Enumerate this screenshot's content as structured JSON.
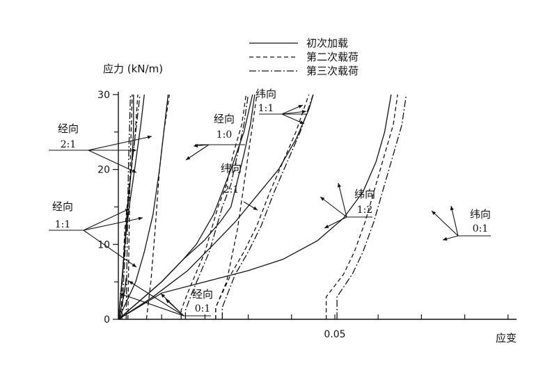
{
  "chart_data": {
    "type": "line",
    "ylabel": "应力 (kN/m)",
    "xlabel": "应变",
    "yticks": [
      0,
      10,
      20,
      30
    ],
    "xtick_labels": [
      {
        "value": 0.05,
        "label": "0.05"
      }
    ],
    "xlim": [
      -0.0035,
      0.074
    ],
    "ylim": [
      0,
      30
    ],
    "grid": false,
    "legend_position": "top-center",
    "legend": [
      {
        "label": "初次加载",
        "style": "solid"
      },
      {
        "label": "第二次载荷",
        "style": "dashed"
      },
      {
        "label": "第三次载荷",
        "style": "dashdot"
      }
    ],
    "groups": [
      {
        "label_line1": "经向",
        "label_line2": "2:1",
        "curves": [
          {
            "style": "solid",
            "points": [
              [
                0,
                0
              ],
              [
                0.0005,
                3
              ],
              [
                0.0012,
                8
              ],
              [
                0.002,
                14
              ],
              [
                0.003,
                20
              ],
              [
                0.0035,
                25
              ],
              [
                0.0035,
                30
              ]
            ]
          },
          {
            "style": "dashed",
            "points": [
              [
                0.0022,
                0
              ],
              [
                0.0024,
                8
              ],
              [
                0.0026,
                16
              ],
              [
                0.0028,
                22
              ],
              [
                0.003,
                26
              ],
              [
                0.0032,
                30
              ]
            ]
          },
          {
            "style": "dashdot",
            "points": [
              [
                0.0018,
                0
              ],
              [
                0.002,
                8
              ],
              [
                0.0022,
                16
              ],
              [
                0.0024,
                22
              ],
              [
                0.0026,
                26
              ],
              [
                0.0028,
                30
              ]
            ]
          }
        ]
      },
      {
        "label_line1": "经向",
        "label_line2": "1:1",
        "curves": [
          {
            "style": "solid",
            "points": [
              [
                0,
                0
              ],
              [
                0.0005,
                3
              ],
              [
                0.001,
                6
              ],
              [
                0.0015,
                10
              ],
              [
                0.0025,
                15
              ],
              [
                0.004,
                21
              ],
              [
                0.0052,
                26
              ],
              [
                0.006,
                30
              ]
            ]
          },
          {
            "style": "dashed",
            "points": [
              [
                0.0005,
                0
              ],
              [
                0.001,
                6
              ],
              [
                0.0015,
                12
              ],
              [
                0.0025,
                18
              ],
              [
                0.0038,
                24
              ],
              [
                0.0045,
                30
              ]
            ]
          },
          {
            "style": "dashdot",
            "points": [
              [
                0.0008,
                0
              ],
              [
                0.0012,
                5
              ],
              [
                0.0018,
                12
              ],
              [
                0.0028,
                19
              ],
              [
                0.004,
                25
              ],
              [
                0.005,
                30
              ]
            ]
          }
        ]
      },
      {
        "label_line1": "经向",
        "label_line2": "1:0",
        "curves": [
          {
            "style": "solid",
            "points": [
              [
                0,
                0
              ],
              [
                0.002,
                2.5
              ],
              [
                0.004,
                5
              ],
              [
                0.006,
                9
              ],
              [
                0.008,
                14
              ],
              [
                0.0095,
                20
              ],
              [
                0.0105,
                25
              ],
              [
                0.0115,
                30
              ]
            ]
          },
          {
            "style": "dashed",
            "points": [
              [
                0.0065,
                0
              ],
              [
                0.0075,
                5
              ],
              [
                0.0085,
                12
              ],
              [
                0.0095,
                20
              ],
              [
                0.0105,
                25
              ],
              [
                0.0118,
                30
              ]
            ]
          }
        ]
      },
      {
        "label_line1": "纬向",
        "label_line2": "2:1",
        "curves": [
          {
            "style": "solid",
            "points": [
              [
                0,
                0
              ],
              [
                0.005,
                2.5
              ],
              [
                0.01,
                5
              ],
              [
                0.015,
                8
              ],
              [
                0.0198,
                10.5
              ],
              [
                0.0235,
                13
              ],
              [
                0.026,
                15
              ],
              [
                0.029,
                22
              ],
              [
                0.0305,
                26
              ],
              [
                0.0315,
                30
              ]
            ]
          },
          {
            "style": "dashed",
            "points": [
              [
                0.0145,
                0
              ],
              [
                0.0145,
                1.2
              ],
              [
                0.016,
                3.5
              ],
              [
                0.02,
                9
              ],
              [
                0.023,
                15
              ],
              [
                0.025,
                18
              ],
              [
                0.0265,
                22
              ],
              [
                0.0285,
                26
              ],
              [
                0.0295,
                30
              ]
            ]
          },
          {
            "style": "dashdot",
            "points": [
              [
                0.0155,
                0
              ],
              [
                0.0155,
                1.2
              ],
              [
                0.017,
                3.5
              ],
              [
                0.021,
                9
              ],
              [
                0.024,
                15
              ],
              [
                0.026,
                18
              ],
              [
                0.0275,
                22
              ],
              [
                0.029,
                26
              ],
              [
                0.03,
                30
              ]
            ]
          }
        ]
      },
      {
        "label_line1": "纬向",
        "label_line2": "1:1",
        "curves": [
          {
            "style": "solid",
            "points": [
              [
                0,
                0
              ],
              [
                0.005,
                2.5
              ],
              [
                0.01,
                5
              ],
              [
                0.015,
                8
              ],
              [
                0.018,
                10
              ],
              [
                0.022,
                14
              ],
              [
                0.026,
                20
              ],
              [
                0.029,
                25
              ],
              [
                0.031,
                30
              ]
            ]
          },
          {
            "style": "dashed",
            "points": [
              [
                0.0225,
                0
              ],
              [
                0.0225,
                1.6
              ],
              [
                0.025,
                5
              ],
              [
                0.0275,
                12
              ],
              [
                0.0295,
                20
              ],
              [
                0.031,
                26
              ],
              [
                0.032,
                30
              ]
            ]
          }
        ]
      },
      {
        "label_line1": "纬向",
        "label_line2": "1:2",
        "curves": [
          {
            "style": "solid",
            "points": [
              [
                0,
                0
              ],
              [
                0.008,
                3
              ],
              [
                0.016,
                6.5
              ],
              [
                0.022,
                10
              ],
              [
                0.027,
                13
              ],
              [
                0.032,
                16.5
              ],
              [
                0.037,
                20
              ],
              [
                0.041,
                24
              ],
              [
                0.044,
                28
              ],
              [
                0.045,
                30
              ]
            ]
          },
          {
            "style": "dashed",
            "points": [
              [
                0.0225,
                0
              ],
              [
                0.0225,
                1.6
              ],
              [
                0.026,
                6
              ],
              [
                0.029,
                9
              ],
              [
                0.032,
                12.5
              ],
              [
                0.035,
                17
              ],
              [
                0.038,
                21
              ],
              [
                0.041,
                25
              ],
              [
                0.044,
                30
              ]
            ]
          },
          {
            "style": "dashdot",
            "points": [
              [
                0.024,
                0
              ],
              [
                0.024,
                1.6
              ],
              [
                0.027,
                6
              ],
              [
                0.03,
                9
              ],
              [
                0.033,
                12.5
              ],
              [
                0.036,
                17
              ],
              [
                0.039,
                21
              ],
              [
                0.042,
                25
              ],
              [
                0.045,
                30
              ]
            ]
          }
        ]
      },
      {
        "label_line1": "纬向",
        "label_line2": "0:1",
        "curves": [
          {
            "style": "solid",
            "points": [
              [
                0,
                0
              ],
              [
                0.01,
                3.5
              ],
              [
                0.02,
                5
              ],
              [
                0.03,
                6.5
              ],
              [
                0.038,
                8
              ],
              [
                0.046,
                10.5
              ],
              [
                0.052,
                13.5
              ],
              [
                0.0565,
                17
              ],
              [
                0.0595,
                21
              ],
              [
                0.0615,
                25
              ],
              [
                0.063,
                30
              ]
            ]
          },
          {
            "style": "dashed",
            "points": [
              [
                0.048,
                0
              ],
              [
                0.048,
                3
              ],
              [
                0.052,
                6
              ],
              [
                0.0545,
                9
              ],
              [
                0.057,
                13
              ],
              [
                0.0595,
                18
              ],
              [
                0.0615,
                22
              ],
              [
                0.0635,
                26
              ],
              [
                0.0645,
                30
              ]
            ]
          },
          {
            "style": "dashdot",
            "points": [
              [
                0.0505,
                0
              ],
              [
                0.0505,
                3
              ],
              [
                0.054,
                6
              ],
              [
                0.0565,
                9
              ],
              [
                0.059,
                13
              ],
              [
                0.0615,
                18
              ],
              [
                0.0635,
                22
              ],
              [
                0.0655,
                26
              ],
              [
                0.0665,
                30
              ]
            ]
          }
        ]
      },
      {
        "label_line1": "经向",
        "label_line2": "0:1",
        "curves": [
          {
            "style": "solid",
            "points": [
              [
                0,
                0
              ],
              [
                0.0006,
                1.5
              ],
              [
                0.0012,
                3
              ],
              [
                0.0016,
                4.5
              ],
              [
                0.0018,
                5.5
              ]
            ]
          },
          {
            "style": "dashed",
            "points": [
              [
                0,
                0
              ],
              [
                0.0008,
                1.8
              ],
              [
                0.0014,
                3.5
              ],
              [
                0.0018,
                5
              ]
            ]
          }
        ]
      }
    ]
  }
}
